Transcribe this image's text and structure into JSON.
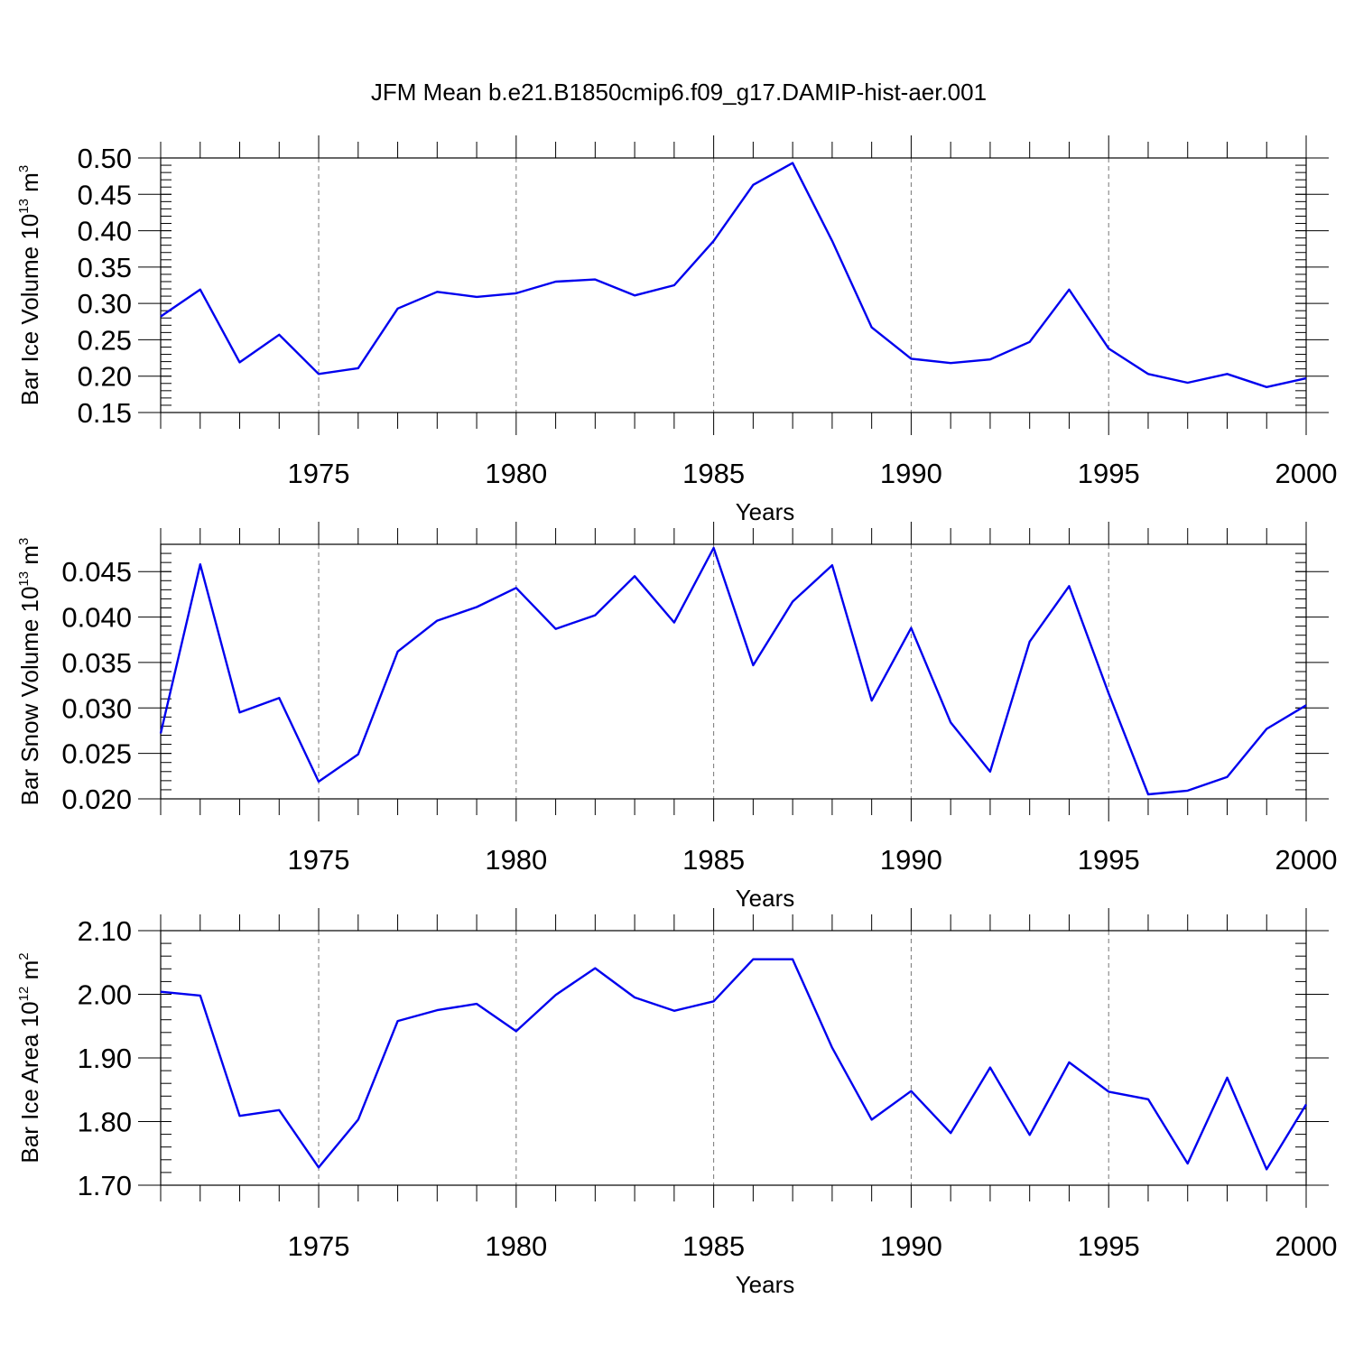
{
  "figure_title": "JFM Mean b.e21.B1850cmip6.f09_g17.DAMIP-hist-aer.001",
  "colors": {
    "line": "#0000ee",
    "axis": "#000000",
    "grid": "#777777"
  },
  "chart_data": [
    {
      "type": "line",
      "title": "",
      "xlabel": "Years",
      "ylabel": {
        "text": "Bar Ice Volume 10",
        "exp": "13",
        "unit": " m",
        "unit_exp": "3"
      },
      "xlim": [
        1971,
        2000
      ],
      "ylim": [
        0.15,
        0.5
      ],
      "x_ticks": [
        1975,
        1980,
        1985,
        1990,
        1995,
        2000
      ],
      "x_tick_labels": [
        "1975",
        "1980",
        "1985",
        "1990",
        "1995",
        "2000"
      ],
      "y_ticks": [
        0.15,
        0.2,
        0.25,
        0.3,
        0.35,
        0.4,
        0.45,
        0.5
      ],
      "y_tick_labels": [
        "0.15",
        "0.20",
        "0.25",
        "0.30",
        "0.35",
        "0.40",
        "0.45",
        "0.50"
      ],
      "y_minor_step": 0.01,
      "grid": "x-dashed",
      "x": [
        1971,
        1972,
        1973,
        1974,
        1975,
        1976,
        1977,
        1978,
        1979,
        1980,
        1981,
        1982,
        1983,
        1984,
        1985,
        1986,
        1987,
        1988,
        1989,
        1990,
        1991,
        1992,
        1993,
        1994,
        1995,
        1996,
        1997,
        1998,
        1999,
        2000
      ],
      "values": [
        0.282,
        0.319,
        0.219,
        0.257,
        0.203,
        0.211,
        0.293,
        0.316,
        0.309,
        0.314,
        0.33,
        0.333,
        0.311,
        0.325,
        0.386,
        0.463,
        0.493,
        0.386,
        0.267,
        0.224,
        0.218,
        0.223,
        0.247,
        0.319,
        0.238,
        0.203,
        0.191,
        0.203,
        0.185,
        0.197
      ]
    },
    {
      "type": "line",
      "title": "",
      "xlabel": "Years",
      "ylabel": {
        "text": "Bar Snow Volume 10",
        "exp": "13",
        "unit": " m",
        "unit_exp": "3"
      },
      "xlim": [
        1971,
        2000
      ],
      "ylim": [
        0.02,
        0.048
      ],
      "x_ticks": [
        1975,
        1980,
        1985,
        1990,
        1995,
        2000
      ],
      "x_tick_labels": [
        "1975",
        "1980",
        "1985",
        "1990",
        "1995",
        "2000"
      ],
      "y_ticks": [
        0.02,
        0.025,
        0.03,
        0.035,
        0.04,
        0.045
      ],
      "y_tick_labels": [
        "0.020",
        "0.025",
        "0.030",
        "0.035",
        "0.040",
        "0.045"
      ],
      "y_minor_step": 0.001,
      "grid": "x-dashed",
      "x": [
        1971,
        1972,
        1973,
        1974,
        1975,
        1976,
        1977,
        1978,
        1979,
        1980,
        1981,
        1982,
        1983,
        1984,
        1985,
        1986,
        1987,
        1988,
        1989,
        1990,
        1991,
        1992,
        1993,
        1994,
        1995,
        1996,
        1997,
        1998,
        1999,
        2000
      ],
      "values": [
        0.0272,
        0.0458,
        0.0295,
        0.0311,
        0.0219,
        0.0249,
        0.0362,
        0.0396,
        0.0411,
        0.0432,
        0.0387,
        0.0402,
        0.0445,
        0.0394,
        0.0476,
        0.0347,
        0.0417,
        0.0457,
        0.0308,
        0.0388,
        0.0284,
        0.023,
        0.0373,
        0.0434,
        0.0316,
        0.0205,
        0.0209,
        0.0224,
        0.0277,
        0.0303
      ]
    },
    {
      "type": "line",
      "title": "",
      "xlabel": "Years",
      "ylabel": {
        "text": "Bar Ice Area 10",
        "exp": "12",
        "unit": " m",
        "unit_exp": "2"
      },
      "xlim": [
        1971,
        2000
      ],
      "ylim": [
        1.7,
        2.1
      ],
      "x_ticks": [
        1975,
        1980,
        1985,
        1990,
        1995,
        2000
      ],
      "x_tick_labels": [
        "1975",
        "1980",
        "1985",
        "1990",
        "1995",
        "2000"
      ],
      "y_ticks": [
        1.7,
        1.8,
        1.9,
        2.0,
        2.1
      ],
      "y_tick_labels": [
        "1.70",
        "1.80",
        "1.90",
        "2.00",
        "2.10"
      ],
      "y_minor_step": 0.02,
      "grid": "x-dashed",
      "x": [
        1971,
        1972,
        1973,
        1974,
        1975,
        1976,
        1977,
        1978,
        1979,
        1980,
        1981,
        1982,
        1983,
        1984,
        1985,
        1986,
        1987,
        1988,
        1989,
        1990,
        1991,
        1992,
        1993,
        1994,
        1995,
        1996,
        1997,
        1998,
        1999,
        2000
      ],
      "values": [
        2.004,
        1.998,
        1.809,
        1.818,
        1.728,
        1.803,
        1.958,
        1.975,
        1.985,
        1.942,
        1.999,
        2.041,
        1.995,
        1.974,
        1.989,
        2.055,
        2.055,
        1.916,
        1.803,
        1.848,
        1.782,
        1.885,
        1.779,
        1.893,
        1.847,
        1.835,
        1.734,
        1.869,
        1.725,
        1.827
      ]
    }
  ]
}
